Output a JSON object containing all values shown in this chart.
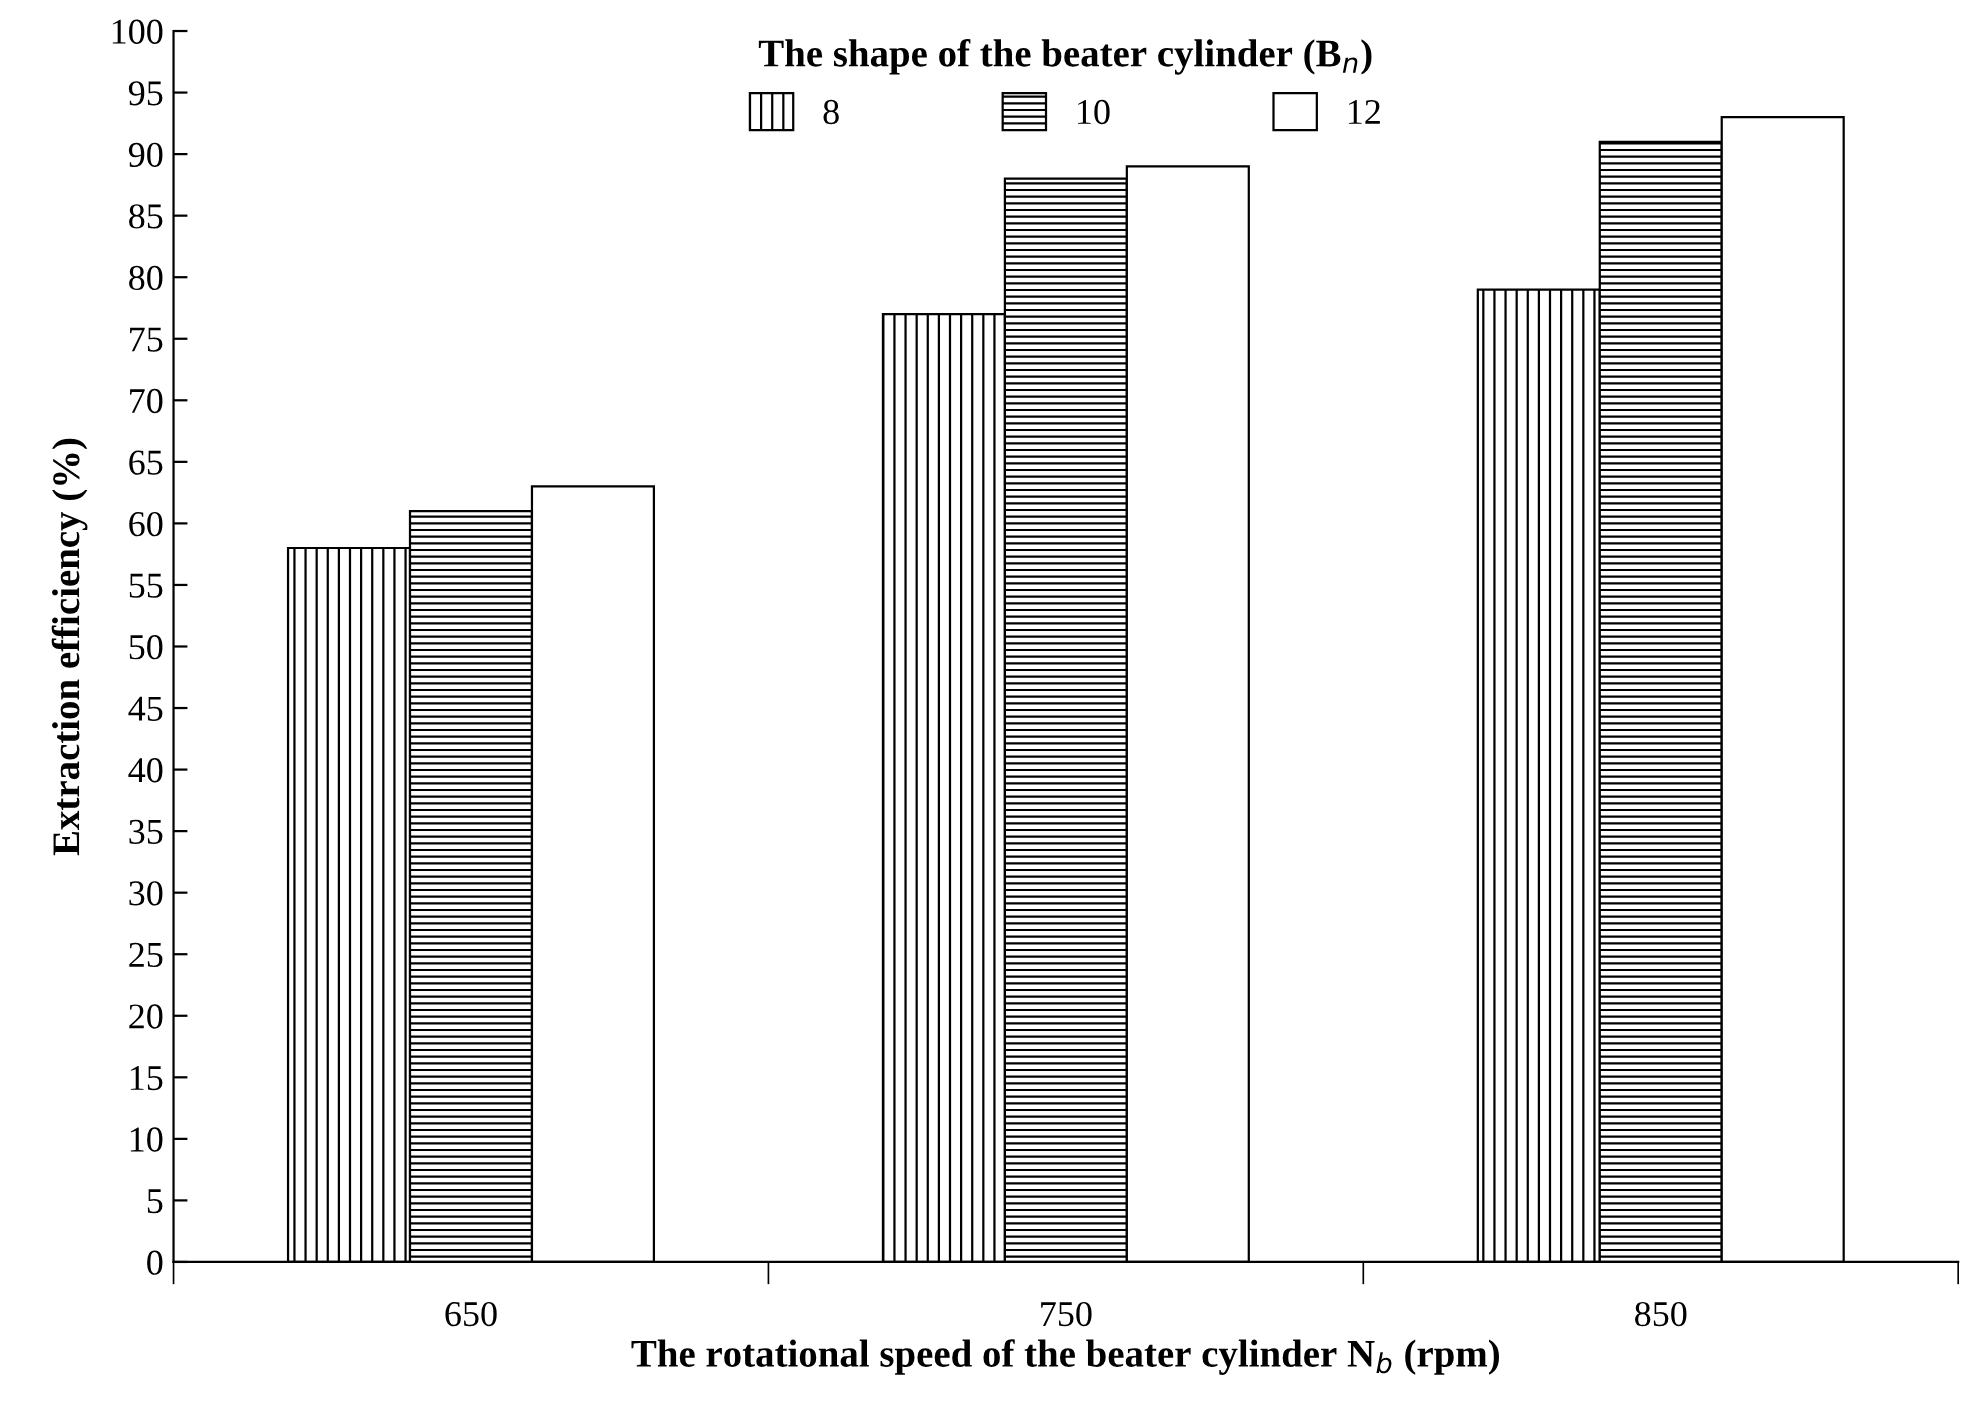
{
  "chart_data": {
    "type": "bar",
    "xlabel": "The rotational speed of the beater cylinder N$_{b}$ (rpm)",
    "ylabel": "Extraction efficiency (%)",
    "legend_title": "The shape of the beater cylinder (B$_{n}$)",
    "categories": [
      "650",
      "750",
      "850"
    ],
    "series": [
      {
        "name": "8",
        "color": "#000000",
        "values": [
          58,
          77,
          79
        ]
      },
      {
        "name": "10",
        "color": "#000000",
        "values": [
          61,
          88,
          91
        ]
      },
      {
        "name": "12",
        "color": "#ffffff",
        "values": [
          63,
          89,
          93
        ]
      }
    ],
    "ylim": [
      0,
      100
    ],
    "yticks": [
      0,
      5,
      10,
      15,
      20,
      25,
      30,
      35,
      40,
      45,
      50,
      55,
      60,
      65,
      70,
      75,
      80,
      85,
      90,
      95,
      100
    ],
    "grid": false,
    "legend": "top"
  }
}
